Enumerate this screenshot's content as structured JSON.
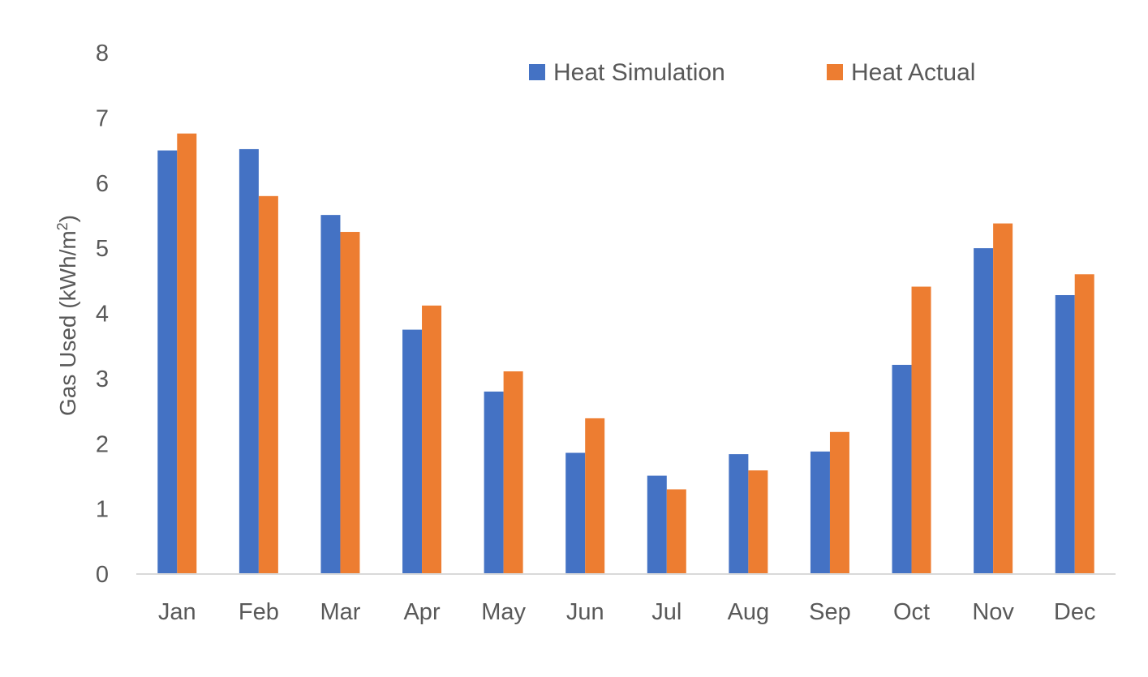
{
  "chart_data": {
    "type": "bar",
    "categories": [
      "Jan",
      "Feb",
      "Mar",
      "Apr",
      "May",
      "Jun",
      "Jul",
      "Aug",
      "Sep",
      "Oct",
      "Nov",
      "Dec"
    ],
    "series": [
      {
        "name": "Heat Simulation",
        "color": "#4472C4",
        "values": [
          6.5,
          6.52,
          5.51,
          3.75,
          2.8,
          1.86,
          1.51,
          1.84,
          1.88,
          3.21,
          5.0,
          4.28
        ]
      },
      {
        "name": "Heat Actual",
        "color": "#ED7D31",
        "values": [
          6.76,
          5.8,
          5.25,
          4.12,
          3.11,
          2.39,
          1.3,
          1.59,
          2.18,
          4.41,
          5.38,
          4.6
        ]
      }
    ],
    "xlabel": "",
    "ylabel": "Gas Used (kWh/m",
    "ylabel_superscript": "2",
    "ylabel_suffix": ")",
    "ylim": [
      0,
      8
    ],
    "yticks": [
      "0",
      "1",
      "2",
      "3",
      "4",
      "5",
      "6",
      "7",
      "8"
    ],
    "grid": false,
    "legend_position": "top-right"
  }
}
